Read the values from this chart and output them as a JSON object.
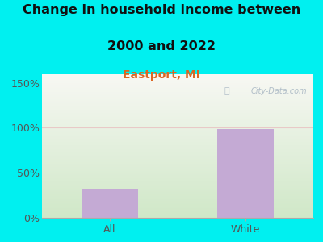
{
  "title_line1": "Change in household income between",
  "title_line2": "2000 and 2022",
  "subtitle": "Eastport, MI",
  "categories": [
    "All",
    "White"
  ],
  "values": [
    32,
    99
  ],
  "bar_color": "#c4aad4",
  "bar_edge_color": "#b090c0",
  "background_color": "#00f0f0",
  "plot_bg_top": "#f8f8f4",
  "plot_bg_bottom": "#d0e8c8",
  "title_fontsize": 11.5,
  "subtitle_fontsize": 10,
  "subtitle_color": "#dd6622",
  "tick_label_color": "#555555",
  "tick_label_fontsize": 9,
  "yticks": [
    0,
    50,
    100,
    150
  ],
  "yticklabels": [
    "0%",
    "50%",
    "100%",
    "150%"
  ],
  "ylim": [
    0,
    160
  ],
  "watermark": "City-Data.com",
  "watermark_color": "#aab8c4",
  "gridline_color": "#e8c0c0",
  "gridline_alpha": 0.8,
  "bar_width": 0.42
}
